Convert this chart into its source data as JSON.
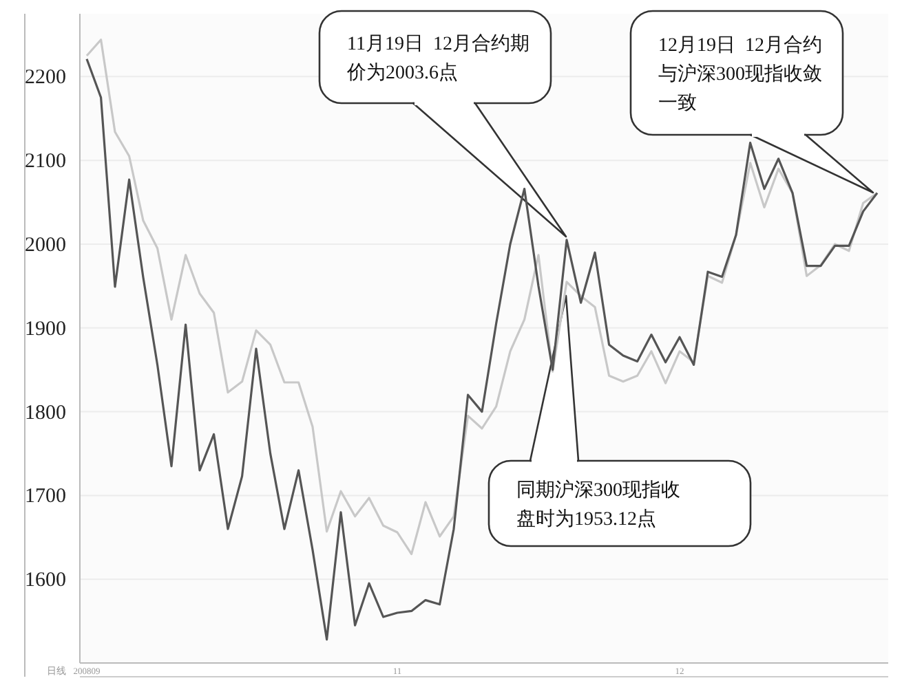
{
  "chart_data": {
    "type": "line",
    "xlabel": "日线",
    "categories": [
      "200809",
      null,
      null,
      null,
      null,
      null,
      null,
      null,
      null,
      null,
      null,
      null,
      null,
      null,
      null,
      null,
      null,
      null,
      null,
      null,
      null,
      null,
      "11",
      null,
      null,
      null,
      null,
      null,
      null,
      null,
      null,
      null,
      null,
      null,
      null,
      null,
      null,
      null,
      null,
      null,
      null,
      null,
      "12",
      null,
      null,
      null,
      null,
      null,
      null,
      null,
      null,
      null,
      null,
      null,
      null,
      null,
      null
    ],
    "series": [
      {
        "color": "#c8c8c8",
        "values": [
          2225,
          2244,
          2134,
          2105,
          2028,
          1995,
          1910,
          1987,
          1941,
          1918,
          1823,
          1836,
          1897,
          1880,
          1835,
          1835,
          1782,
          1657,
          1705,
          1675,
          1697,
          1664,
          1656,
          1630,
          1692,
          1651,
          1675,
          1795,
          1780,
          1806,
          1872,
          1910,
          1987,
          1848,
          1955,
          1938,
          1925,
          1843,
          1836,
          1843,
          1872,
          1834,
          1872,
          1859,
          1962,
          1954,
          2011,
          2097,
          2044,
          2090,
          2061,
          1962,
          1975,
          2000,
          1992,
          2049,
          2061
        ]
      },
      {
        "color": "#555555",
        "values": [
          2221,
          2175,
          1949,
          2077,
          1960,
          1856,
          1735,
          1904,
          1730,
          1773,
          1660,
          1723,
          1875,
          1750,
          1660,
          1730,
          1635,
          1528,
          1680,
          1545,
          1595,
          1555,
          1560,
          1562,
          1575,
          1570,
          1660,
          1820,
          1800,
          1905,
          2000,
          2066,
          1950,
          1850,
          2005,
          1930,
          1990,
          1880,
          1867,
          1860,
          1892,
          1859,
          1889,
          1856,
          1967,
          1961,
          2011,
          2121,
          2066,
          2102,
          2061,
          1974,
          1974,
          1998,
          1998,
          2039,
          2061
        ]
      }
    ],
    "ylim": [
      1500,
      2275
    ],
    "yticks": [
      1600,
      1700,
      1800,
      1900,
      2000,
      2100,
      2200
    ],
    "grid": "y",
    "marker": "none",
    "line_style": "solid",
    "annotations": [
      "11月19日  12月合约期价为2003.6点",
      "12月19日  12月合约与沪深300现指收敛一致",
      "同期沪深300现指收盘时为1953.12点"
    ]
  }
}
